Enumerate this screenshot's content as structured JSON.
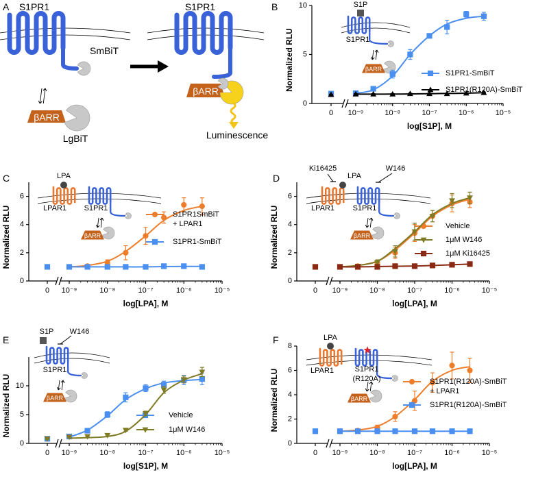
{
  "diagram": {
    "label": "A",
    "before": {
      "receptor": "S1PR1",
      "tag": "SmBiT",
      "arrestin": "βARR",
      "partner": "LgBiT"
    },
    "after": {
      "receptor": "S1PR1",
      "arrestin": "βARR",
      "signal": "Luminescence"
    }
  },
  "chart_data": [
    {
      "type": "line",
      "label": "B",
      "ylabel": "Normalized RLU",
      "xlabel": "log[S1P], M",
      "xscale": "log",
      "axis_break": true,
      "annotations": [
        "S1P",
        "S1PR1",
        "βARR"
      ],
      "x": [
        0,
        1e-09,
        3e-09,
        1e-08,
        3e-08,
        1e-07,
        3e-07,
        1e-06,
        3e-06
      ],
      "xlim": [
        1e-09,
        1e-05
      ],
      "xticks": [
        {
          "value": 0,
          "label": "0"
        },
        {
          "value": 1e-09,
          "label": "10⁻⁹"
        },
        {
          "value": 1e-08,
          "label": "10⁻⁸"
        },
        {
          "value": 1e-07,
          "label": "10⁻⁷"
        },
        {
          "value": 1e-06,
          "label": "10⁻⁶"
        },
        {
          "value": 1e-05,
          "label": "10⁻⁵"
        }
      ],
      "ylim": [
        0,
        10
      ],
      "yticks": [
        0,
        5,
        10
      ],
      "series": [
        {
          "name": "S1PR1-SmBiT",
          "color": "#4a8ff0",
          "marker": "square",
          "values": [
            1.0,
            1.05,
            1.5,
            3.0,
            5.0,
            6.9,
            7.8,
            9.1,
            8.9
          ],
          "errors": [
            0.1,
            0.1,
            0.2,
            0.4,
            0.5,
            0.2,
            0.7,
            0.3,
            0.4
          ],
          "fit": [
            null,
            1.05,
            1.4,
            2.8,
            5.0,
            6.9,
            8.1,
            8.7,
            8.9
          ]
        },
        {
          "name": "S1PR1(R120A)-SmBiT",
          "color": "#000000",
          "marker": "triangle-up",
          "values": [
            0.9,
            0.95,
            0.95,
            0.95,
            1.0,
            1.0,
            1.0,
            1.05,
            1.1
          ],
          "errors": [
            0.05,
            0.05,
            0.05,
            0.05,
            0.05,
            0.05,
            0.05,
            0.05,
            0.05
          ],
          "fit": [
            null,
            0.95,
            0.95,
            0.96,
            0.97,
            1.0,
            1.02,
            1.05,
            1.1
          ]
        }
      ]
    },
    {
      "type": "line",
      "label": "C",
      "ylabel": "Normalized RLU",
      "xlabel": "log[LPA], M",
      "xscale": "log",
      "axis_break": true,
      "annotations": [
        "LPA",
        "LPAR1",
        "S1PR1",
        "βARR"
      ],
      "x": [
        0,
        1e-09,
        3e-09,
        1e-08,
        3e-08,
        1e-07,
        3e-07,
        1e-06,
        3e-06
      ],
      "xlim": [
        1e-09,
        1e-05
      ],
      "xticks": [
        {
          "value": 0,
          "label": "0"
        },
        {
          "value": 1e-09,
          "label": "10⁻⁹"
        },
        {
          "value": 1e-08,
          "label": "10⁻⁸"
        },
        {
          "value": 1e-07,
          "label": "10⁻⁷"
        },
        {
          "value": 1e-06,
          "label": "10⁻⁶"
        },
        {
          "value": 1e-05,
          "label": "10⁻⁵"
        }
      ],
      "ylim": [
        0,
        7
      ],
      "yticks": [
        0,
        2,
        4,
        6
      ],
      "series": [
        {
          "name": "S1PR1SmBiT\n+ LPAR1",
          "color": "#ee7d2b",
          "marker": "circle",
          "values": [
            1.0,
            1.0,
            1.05,
            1.3,
            2.0,
            3.2,
            4.5,
            5.4,
            5.3
          ],
          "errors": [
            0.05,
            0.05,
            0.1,
            0.2,
            0.5,
            0.6,
            0.4,
            0.5,
            0.6
          ],
          "fit": [
            null,
            1.0,
            1.1,
            1.4,
            2.1,
            3.2,
            4.3,
            5.0,
            5.3
          ]
        },
        {
          "name": "S1PR1-SmBiT",
          "color": "#4a8ff0",
          "marker": "square",
          "values": [
            1.0,
            1.0,
            1.0,
            1.0,
            1.0,
            1.0,
            1.05,
            1.05,
            1.0
          ],
          "errors": [
            0.05,
            0.05,
            0.05,
            0.05,
            0.05,
            0.05,
            0.1,
            0.1,
            0.1
          ],
          "fit": [
            null,
            1.0,
            1.0,
            1.0,
            1.0,
            1.0,
            1.02,
            1.03,
            1.03
          ]
        }
      ]
    },
    {
      "type": "line",
      "label": "D",
      "ylabel": "Normalized RLU",
      "xlabel": "log[LPA], M",
      "xscale": "log",
      "axis_break": true,
      "annotations": [
        "Ki16425",
        "LPA",
        "W146",
        "LPAR1",
        "S1PR1",
        "βARR"
      ],
      "x": [
        0,
        1e-09,
        3e-09,
        1e-08,
        3e-08,
        1e-07,
        3e-07,
        1e-06,
        3e-06
      ],
      "xlim": [
        1e-09,
        1e-05
      ],
      "xticks": [
        {
          "value": 0,
          "label": "0"
        },
        {
          "value": 1e-09,
          "label": "10⁻⁹"
        },
        {
          "value": 1e-08,
          "label": "10⁻⁸"
        },
        {
          "value": 1e-07,
          "label": "10⁻⁷"
        },
        {
          "value": 1e-06,
          "label": "10⁻⁶"
        },
        {
          "value": 1e-05,
          "label": "10⁻⁵"
        }
      ],
      "ylim": [
        0,
        7
      ],
      "yticks": [
        0,
        2,
        4,
        6
      ],
      "series": [
        {
          "name": "Vehicle",
          "color": "#ee7d2b",
          "marker": "circle",
          "values": [
            1.0,
            1.0,
            1.05,
            1.3,
            2.0,
            3.4,
            4.6,
            5.5,
            5.6
          ],
          "errors": [
            0.05,
            0.05,
            0.1,
            0.2,
            0.4,
            0.6,
            0.4,
            0.6,
            0.4
          ],
          "fit": [
            null,
            1.0,
            1.1,
            1.4,
            2.2,
            3.4,
            4.6,
            5.4,
            5.8
          ]
        },
        {
          "name": "1μM W146",
          "color": "#7f7a24",
          "marker": "triangle-down",
          "values": [
            1.0,
            1.0,
            1.05,
            1.3,
            2.1,
            3.5,
            4.6,
            5.7,
            5.9
          ],
          "errors": [
            0.05,
            0.05,
            0.1,
            0.2,
            0.4,
            0.6,
            0.4,
            0.5,
            0.4
          ],
          "fit": [
            null,
            1.0,
            1.1,
            1.4,
            2.3,
            3.5,
            4.7,
            5.5,
            5.9
          ]
        },
        {
          "name": "1μM Ki16425",
          "color": "#8b2a14",
          "marker": "square",
          "values": [
            1.0,
            1.0,
            1.0,
            1.0,
            1.05,
            1.05,
            1.1,
            1.15,
            1.2
          ],
          "errors": [
            0.05,
            0.05,
            0.05,
            0.05,
            0.05,
            0.05,
            0.05,
            0.05,
            0.05
          ],
          "fit": [
            null,
            1.0,
            1.0,
            1.02,
            1.04,
            1.06,
            1.1,
            1.15,
            1.2
          ]
        }
      ]
    },
    {
      "type": "line",
      "label": "E",
      "ylabel": "Normalized RLU",
      "xlabel": "log[S1P], M",
      "xscale": "log",
      "axis_break": true,
      "annotations": [
        "S1P",
        "W146",
        "S1PR1",
        "βARR"
      ],
      "x": [
        0,
        1e-09,
        3e-09,
        1e-08,
        3e-08,
        1e-07,
        3e-07,
        1e-06,
        3e-06
      ],
      "xlim": [
        1e-09,
        1e-05
      ],
      "xticks": [
        {
          "value": 0,
          "label": "0"
        },
        {
          "value": 1e-09,
          "label": "10⁻⁹"
        },
        {
          "value": 1e-08,
          "label": "10⁻⁸"
        },
        {
          "value": 1e-07,
          "label": "10⁻⁷"
        },
        {
          "value": 1e-06,
          "label": "10⁻⁶"
        },
        {
          "value": 1e-05,
          "label": "10⁻⁵"
        }
      ],
      "ylim": [
        0,
        15
      ],
      "yticks": [
        0,
        5,
        10
      ],
      "series": [
        {
          "name": "Vehicle",
          "color": "#4a8ff0",
          "marker": "square",
          "values": [
            0.8,
            1.2,
            2.2,
            5.0,
            8.0,
            9.6,
            10.2,
            11.0,
            11.2
          ],
          "errors": [
            0.1,
            0.2,
            0.3,
            0.5,
            0.8,
            0.6,
            0.6,
            0.8,
            1.0
          ],
          "fit": [
            null,
            1.1,
            2.3,
            4.8,
            7.6,
            9.5,
            10.5,
            10.9,
            11.1
          ]
        },
        {
          "name": "1μM W146",
          "color": "#7f7a24",
          "marker": "triangle-down",
          "values": [
            0.8,
            1.1,
            1.2,
            1.4,
            2.3,
            5.2,
            9.3,
            11.1,
            12.4
          ],
          "errors": [
            0.1,
            0.1,
            0.1,
            0.1,
            0.2,
            0.4,
            0.6,
            0.6,
            0.8
          ],
          "fit": [
            null,
            0.9,
            1.0,
            1.2,
            2.1,
            5.0,
            8.8,
            11.0,
            12.1
          ]
        }
      ]
    },
    {
      "type": "line",
      "label": "F",
      "ylabel": "Normalized RLU",
      "xlabel": "log[LPA], M",
      "xscale": "log",
      "axis_break": true,
      "annotations": [
        "LPA",
        "LPAR1",
        "S1PR1\n(R120A)",
        "βARR"
      ],
      "x": [
        0,
        1e-09,
        3e-09,
        1e-08,
        3e-08,
        1e-07,
        3e-07,
        1e-06,
        3e-06
      ],
      "xlim": [
        1e-09,
        1e-05
      ],
      "xticks": [
        {
          "value": 0,
          "label": "0"
        },
        {
          "value": 1e-09,
          "label": "10⁻⁹"
        },
        {
          "value": 1e-08,
          "label": "10⁻⁸"
        },
        {
          "value": 1e-07,
          "label": "10⁻⁷"
        },
        {
          "value": 1e-06,
          "label": "10⁻⁶"
        },
        {
          "value": 1e-05,
          "label": "10⁻⁵"
        }
      ],
      "ylim": [
        0,
        8
      ],
      "yticks": [
        0,
        2,
        4,
        6,
        8
      ],
      "series": [
        {
          "name": "S1PR1(R120A)-SmBiT\n+ LPAR1",
          "color": "#ee7d2b",
          "marker": "circle",
          "values": [
            1.0,
            1.0,
            1.05,
            1.3,
            2.2,
            3.5,
            5.0,
            6.4,
            6.0
          ],
          "errors": [
            0.05,
            0.05,
            0.1,
            0.2,
            0.4,
            0.8,
            0.8,
            1.1,
            1.0
          ],
          "fit": [
            null,
            1.0,
            1.1,
            1.4,
            2.2,
            3.6,
            5.1,
            6.0,
            6.3
          ]
        },
        {
          "name": "S1PR1(R120A)-SmBiT",
          "color": "#4a8ff0",
          "marker": "square",
          "values": [
            1.0,
            1.0,
            1.0,
            1.0,
            1.0,
            1.0,
            1.0,
            1.0,
            1.0
          ],
          "errors": [
            0.05,
            0.05,
            0.05,
            0.05,
            0.05,
            0.05,
            0.05,
            0.05,
            0.05
          ],
          "fit": [
            null,
            1.0,
            1.0,
            1.0,
            1.0,
            1.0,
            1.0,
            1.0,
            1.0
          ]
        }
      ]
    }
  ]
}
